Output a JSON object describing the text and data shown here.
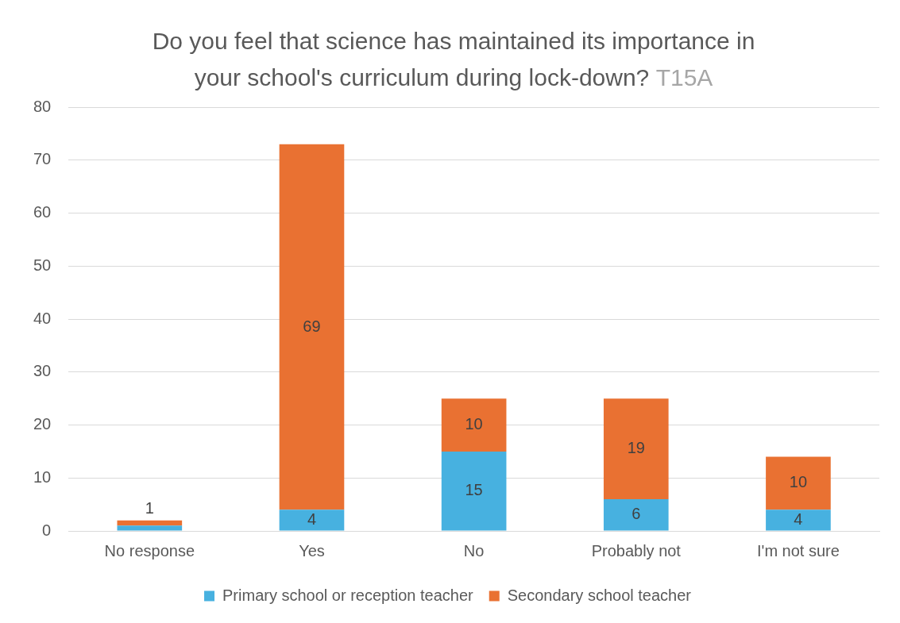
{
  "chart_data": {
    "type": "bar",
    "title": "Do you feel that science has maintained its importance in your school's curriculum during lock-down?",
    "annotations": [
      "T15A"
    ],
    "categories": [
      "No response",
      "Yes",
      "No",
      "Probably not",
      "I'm not sure"
    ],
    "series": [
      {
        "name": "Primary school or reception teacher",
        "color": "#47b1e0",
        "values": [
          1,
          4,
          15,
          6,
          4
        ],
        "value_labels": [
          null,
          "4",
          "15",
          "6",
          "4"
        ]
      },
      {
        "name": "Secondary school teacher",
        "color": "#e97132",
        "values": [
          1,
          69,
          10,
          19,
          10
        ],
        "value_labels": [
          "1",
          "69",
          "10",
          "19",
          "10"
        ]
      }
    ],
    "stacked": true,
    "ylim": [
      0,
      80
    ],
    "yticks": [
      0,
      10,
      20,
      30,
      40,
      50,
      60,
      70,
      80
    ],
    "grid": "y",
    "legend": "bottom"
  }
}
